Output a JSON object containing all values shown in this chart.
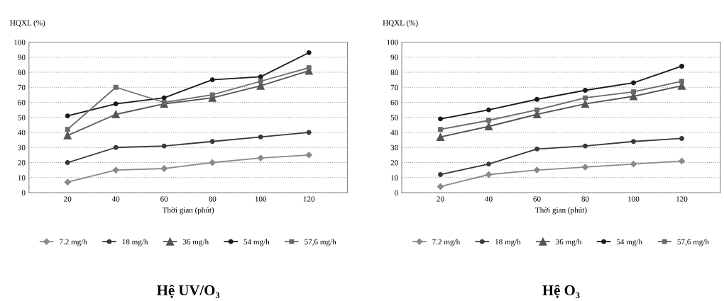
{
  "chart_data": [
    {
      "type": "line",
      "title": "Hệ UV/O₃",
      "ylabel": "HQXL (%)",
      "xlabel": "Thời gian (phút)",
      "categories": [
        "20",
        "40",
        "60",
        "80",
        "100",
        "120"
      ],
      "ylim": [
        0,
        100
      ],
      "yticks": [
        0,
        10,
        20,
        30,
        40,
        50,
        60,
        70,
        80,
        90,
        100
      ],
      "grid": "y",
      "legend": "bottom",
      "series": [
        {
          "name": "7.2 mg/h",
          "color": "#8a8a8a",
          "marker": "diamond",
          "values": [
            7,
            15,
            16,
            20,
            23,
            25
          ]
        },
        {
          "name": "18 mg/h",
          "color": "#3a3a3a",
          "marker": "circle",
          "values": [
            20,
            30,
            31,
            34,
            37,
            40
          ]
        },
        {
          "name": "36 mg/h",
          "color": "#555555",
          "marker": "triangle",
          "values": [
            38,
            52,
            59,
            63,
            71,
            81
          ]
        },
        {
          "name": "54 mg/h",
          "color": "#1a1a1a",
          "marker": "circle",
          "values": [
            51,
            59,
            63,
            75,
            77,
            93
          ]
        },
        {
          "name": "57,6 mg/h",
          "color": "#6a6a6a",
          "marker": "square",
          "values": [
            42,
            70,
            60,
            65,
            74,
            83
          ]
        }
      ]
    },
    {
      "type": "line",
      "title": "Hệ O₃",
      "ylabel": "HQXL (%)",
      "xlabel": "Thời gian (phút)",
      "categories": [
        "20",
        "40",
        "60",
        "80",
        "100",
        "120"
      ],
      "ylim": [
        0,
        100
      ],
      "yticks": [
        0,
        10,
        20,
        30,
        40,
        50,
        60,
        70,
        80,
        90,
        100
      ],
      "grid": "y",
      "legend": "bottom",
      "series": [
        {
          "name": "7.2 mg/h",
          "color": "#8a8a8a",
          "marker": "diamond",
          "values": [
            4,
            12,
            15,
            17,
            19,
            21
          ]
        },
        {
          "name": "18 mg/h",
          "color": "#3a3a3a",
          "marker": "circle",
          "values": [
            12,
            19,
            29,
            31,
            34,
            36
          ]
        },
        {
          "name": "36 mg/h",
          "color": "#555555",
          "marker": "triangle",
          "values": [
            37,
            44,
            52,
            59,
            64,
            71
          ]
        },
        {
          "name": "54 mg/h",
          "color": "#1a1a1a",
          "marker": "circle",
          "values": [
            49,
            55,
            62,
            68,
            73,
            84
          ]
        },
        {
          "name": "57,6 mg/h",
          "color": "#6a6a6a",
          "marker": "square",
          "values": [
            42,
            48,
            55,
            63,
            67,
            74
          ]
        }
      ]
    }
  ]
}
